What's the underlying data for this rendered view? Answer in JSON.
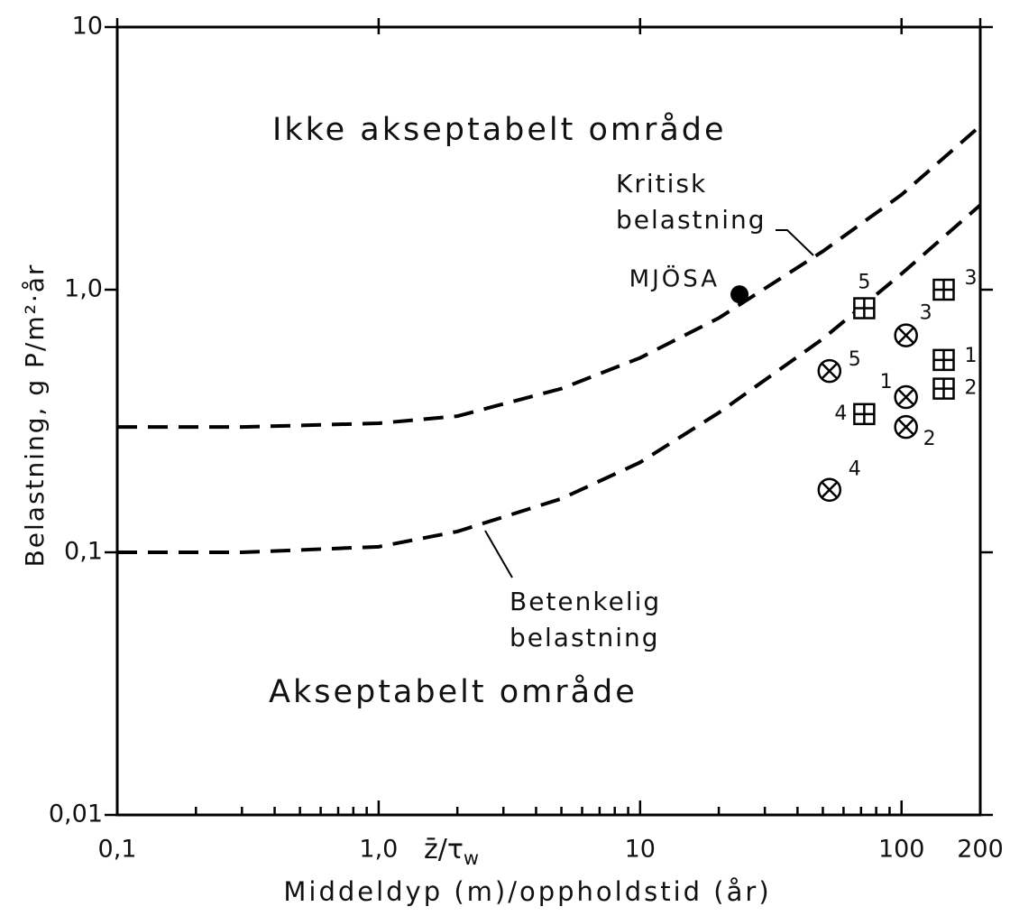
{
  "chart_data": {
    "type": "scatter",
    "xlabel": "Middeldyp (m)/oppholdstid (år)",
    "xsymbol": {
      "main": "z̄/τ",
      "sub": "w"
    },
    "ylabel": "Belastning, g P/m²·år",
    "xscale": "log",
    "yscale": "log",
    "xlim": [
      0.1,
      200
    ],
    "ylim": [
      0.01,
      10
    ],
    "xticks": [
      {
        "value": 0.1,
        "label": "0,1"
      },
      {
        "value": 1,
        "label": "1,0"
      },
      10,
      100,
      200
    ],
    "yticks": [
      {
        "value": 0.01,
        "label": "0,01"
      },
      {
        "value": 0.1,
        "label": "0,1"
      },
      {
        "value": 1,
        "label": "1,0"
      },
      10
    ],
    "xminorticks": [
      0.2,
      0.3,
      0.4,
      0.5,
      0.6,
      0.7,
      0.8,
      0.9,
      2,
      3,
      4,
      5,
      6,
      7,
      8,
      9,
      20,
      30,
      40,
      50,
      60,
      70,
      80,
      90
    ],
    "annotations": [
      {
        "lines": [
          "Ikke akseptabelt område"
        ]
      },
      {
        "lines": [
          "Kritisk",
          "belastning"
        ]
      },
      {
        "lines": [
          "MJÖSA"
        ]
      },
      {
        "lines": [
          "Betenkelig",
          "belastning"
        ]
      },
      {
        "lines": [
          "Akseptabelt område"
        ]
      }
    ],
    "series": [
      {
        "style": "dashed",
        "color": "#000000",
        "x": [
          0.1,
          0.3,
          1,
          2,
          5,
          10,
          20,
          50,
          100,
          200
        ],
        "values": [
          0.3,
          0.3,
          0.31,
          0.33,
          0.42,
          0.55,
          0.78,
          1.4,
          2.3,
          4.2
        ]
      },
      {
        "style": "dashed",
        "color": "#000000",
        "x": [
          0.1,
          0.3,
          1,
          2,
          5,
          10,
          20,
          50,
          100,
          200
        ],
        "values": [
          0.1,
          0.1,
          0.105,
          0.12,
          0.16,
          0.22,
          0.34,
          0.65,
          1.15,
          2.1
        ]
      },
      {
        "marker": "dot",
        "color": "#000000",
        "x": [
          24
        ],
        "values": [
          0.96
        ]
      },
      {
        "marker": "square-plus",
        "color": "#000000",
        "x": [
          72,
          72,
          145,
          145,
          145
        ],
        "values": [
          0.85,
          0.336,
          1.0,
          0.54,
          0.42
        ],
        "labels": [
          "5",
          "4",
          "3",
          "1",
          "2"
        ]
      },
      {
        "marker": "circle-x",
        "color": "#000000",
        "x": [
          53,
          53,
          104,
          104,
          104
        ],
        "values": [
          0.49,
          0.173,
          0.67,
          0.39,
          0.3
        ],
        "labels": [
          "5",
          "4",
          "3",
          "1",
          "2"
        ]
      }
    ]
  }
}
